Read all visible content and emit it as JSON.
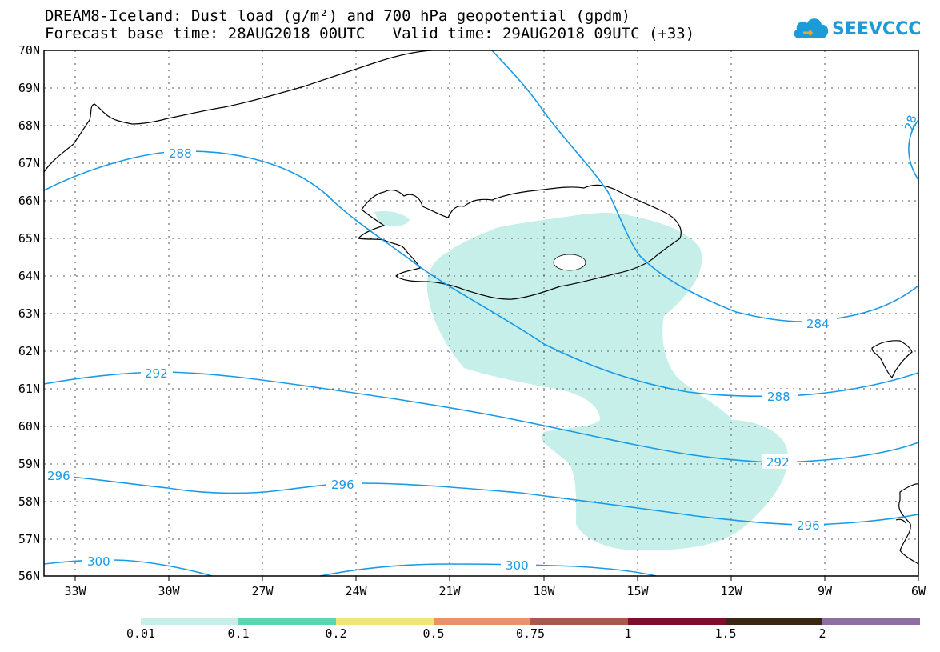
{
  "title": {
    "line1": "DREAM8-Iceland: Dust load (g/m²) and 700 hPa geopotential (gpdm)",
    "line2": "Forecast base time: 28AUG2018 00UTC   Valid time: 29AUG2018 09UTC (+33)"
  },
  "logo": {
    "text": "SEEVCCC",
    "icon": "cloud-icon"
  },
  "map": {
    "lat_labels": [
      "70N",
      "69N",
      "68N",
      "67N",
      "66N",
      "65N",
      "64N",
      "63N",
      "62N",
      "61N",
      "60N",
      "59N",
      "58N",
      "57N",
      "56N"
    ],
    "lon_labels": [
      "33W",
      "30W",
      "27W",
      "24W",
      "21W",
      "18W",
      "15W",
      "12W",
      "9W",
      "6W"
    ],
    "contour_color": "#1a9ae6",
    "contour_labels": [
      "288",
      "292",
      "296",
      "300",
      "296",
      "292",
      "288",
      "284",
      "300",
      "28"
    ]
  },
  "colorbar": {
    "labels": [
      "0.01",
      "0.1",
      "0.2",
      "0.5",
      "0.75",
      "1",
      "1.5",
      "2"
    ],
    "colors": [
      "#c6efe9",
      "#5cd6b0",
      "#f1e47a",
      "#e8936a",
      "#a45a4c",
      "#7c0f2c",
      "#3a2613",
      "#8e6fa3"
    ]
  }
}
